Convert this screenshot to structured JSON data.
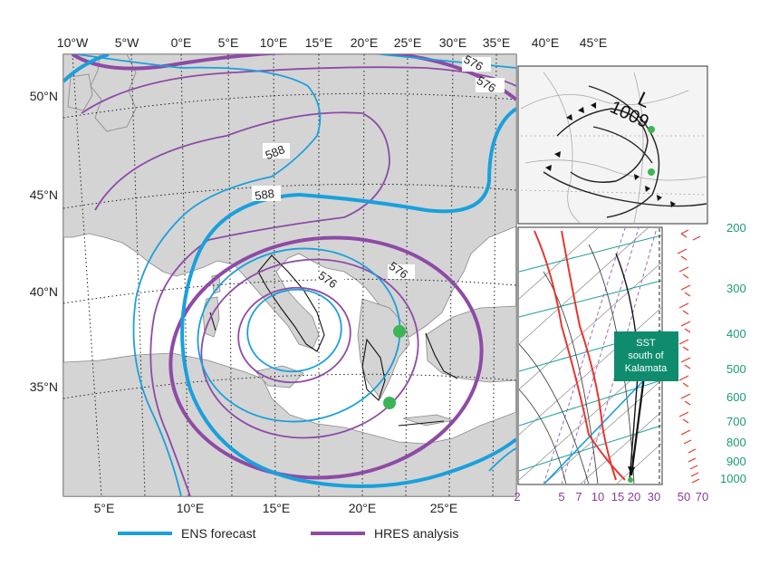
{
  "chart_data": {
    "type": "map",
    "top_longitudes": [
      "10°W",
      "5°W",
      "0°E",
      "5°E",
      "10°E",
      "15°E",
      "20°E",
      "25°E",
      "30°E",
      "35°E",
      "40°E",
      "45°E"
    ],
    "bottom_longitudes": [
      "5°E",
      "10°E",
      "15°E",
      "20°E",
      "25°E"
    ],
    "latitudes": [
      "50°N",
      "45°N",
      "40°N",
      "35°N"
    ],
    "contour_labels": [
      "576",
      "576",
      "576",
      "588",
      "588",
      "576",
      "576"
    ],
    "series": [
      {
        "name": "ENS forecast",
        "color": "#1aa0dc"
      },
      {
        "name": "HRES analysis",
        "color": "#8e4ba6"
      }
    ],
    "inset_synoptic": {
      "low_label": "L",
      "pressure": "1009"
    },
    "skewt": {
      "annotation": [
        "SST",
        "south of",
        "Kalamata"
      ],
      "pressure_levels": [
        "200",
        "300",
        "400",
        "500",
        "600",
        "700",
        "800",
        "900",
        "1000"
      ],
      "temperature_ticks": [
        "2",
        "5",
        "7",
        "10",
        "15",
        "20",
        "30",
        "50",
        "70"
      ]
    }
  }
}
